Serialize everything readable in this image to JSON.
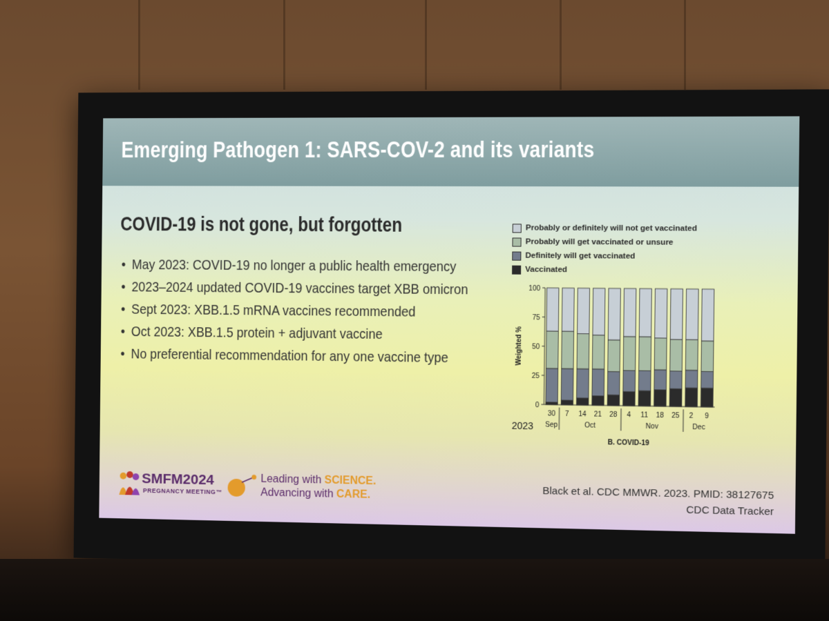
{
  "slide": {
    "title": "Emerging Pathogen 1: SARS-COV-2 and its variants",
    "subtitle": "COVID-19 is not gone, but forgotten",
    "bullet_symbol": "•",
    "bullets": [
      "May 2023: COVID-19 no longer a public health emergency",
      "2023–2024 updated COVID-19 vaccines target XBB omicron",
      "Sept 2023: XBB.1.5 mRNA vaccines recommended",
      "Oct 2023: XBB.1.5 protein + adjuvant vaccine",
      "No preferential recommendation for any one vaccine type"
    ],
    "footer": {
      "logo_main": "SMFM2024",
      "logo_sub": "PREGNANCY MEETING™",
      "tagline_1_prefix": "Leading with ",
      "tagline_1_highlight": "SCIENCE.",
      "tagline_2_prefix": "Advancing with ",
      "tagline_2_highlight": "CARE."
    },
    "citation_1": "Black et al. CDC MMWR. 2023. PMID: 38127675",
    "citation_2": "CDC Data Tracker"
  },
  "colors": {
    "not_vaccinated": "#c7cfd6",
    "probably_unsure": "#a9bda6",
    "definitely": "#737c8c",
    "vaccinated": "#2b2b2b"
  },
  "chart_data": {
    "type": "bar",
    "stacked": true,
    "title": "B. COVID-19",
    "ylabel": "Weighted %",
    "ylim": [
      0,
      100
    ],
    "yticks": [
      0,
      25,
      50,
      75,
      100
    ],
    "categories": [
      "30",
      "7",
      "14",
      "21",
      "28",
      "4",
      "11",
      "18",
      "25",
      "2",
      "9"
    ],
    "months": [
      {
        "label": "Sep",
        "start": 0,
        "end": 0
      },
      {
        "label": "Oct",
        "start": 1,
        "end": 4
      },
      {
        "label": "Nov",
        "start": 5,
        "end": 8
      },
      {
        "label": "Dec",
        "start": 9,
        "end": 10
      }
    ],
    "year_label": "2023",
    "series": [
      {
        "name": "Vaccinated",
        "color_key": "vaccinated",
        "values": [
          2,
          4,
          6,
          8,
          9,
          12,
          13,
          14,
          15,
          16,
          16
        ]
      },
      {
        "name": "Definitely will get vaccinated",
        "color_key": "definitely",
        "values": [
          29,
          27,
          25,
          23,
          20,
          18,
          17,
          17,
          15,
          15,
          14
        ]
      },
      {
        "name": "Probably will get vaccinated or unsure",
        "color_key": "probably_unsure",
        "values": [
          32,
          32,
          30,
          29,
          27,
          29,
          29,
          27,
          27,
          26,
          26
        ]
      },
      {
        "name": "Probably or definitely will not get vaccinated",
        "color_key": "not_vaccinated",
        "values": [
          37,
          37,
          39,
          40,
          44,
          41,
          41,
          42,
          43,
          43,
          44
        ]
      }
    ],
    "legend": [
      "Probably or definitely will not get vaccinated",
      "Probably will get vaccinated or unsure",
      "Definitely will get vaccinated",
      "Vaccinated"
    ],
    "legend_colors": [
      "not_vaccinated",
      "probably_unsure",
      "definitely",
      "vaccinated"
    ]
  }
}
